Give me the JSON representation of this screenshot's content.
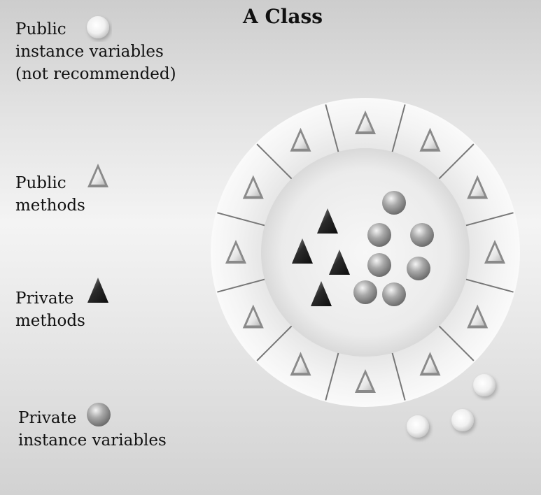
{
  "title": "A Class",
  "legend": [
    {
      "lines": [
        "Public",
        "instance variables",
        "(not recommended)"
      ],
      "symbol": "white-sphere-icon"
    },
    {
      "lines": [
        "Public",
        "methods"
      ],
      "symbol": "white-triangle-icon"
    },
    {
      "lines": [
        "Private",
        "methods"
      ],
      "symbol": "dark-triangle-icon"
    },
    {
      "lines": [
        "Private",
        "instance variables"
      ],
      "symbol": "gray-sphere-icon"
    }
  ],
  "colors": {
    "public_variable": "#ffffff",
    "private_variable": "#8e8e8e",
    "public_method": "#e4e4e4",
    "private_method": "#1e1e1e",
    "ring_divider": "#777777"
  }
}
